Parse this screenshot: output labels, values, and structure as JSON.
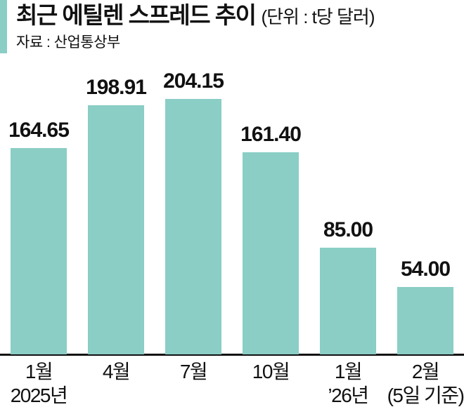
{
  "header": {
    "title": "최근 에틸렌 스프레드 추이",
    "unit_label": "(단위 : t당 달러)",
    "source": "자료 : 산업통상부"
  },
  "colors": {
    "bar": "#8ACEC6",
    "accent": "#8ACEC6",
    "axis": "#111111",
    "text": "#111111"
  },
  "chart_data": {
    "type": "bar",
    "title": "최근 에틸렌 스프레드 추이",
    "unit": "t당 달러",
    "source": "산업통상부",
    "categories": [
      "1월",
      "4월",
      "7월",
      "10월",
      "1월",
      "2월"
    ],
    "sub_labels": [
      "2025년",
      "",
      "",
      "",
      "’26년",
      "(5일 기준)"
    ],
    "values": [
      164.65,
      198.91,
      204.15,
      161.4,
      85.0,
      54.0
    ],
    "value_labels": [
      "164.65",
      "198.91",
      "204.15",
      "161.40",
      "85.00",
      "54.00"
    ],
    "ylim": [
      0,
      204.15
    ],
    "grid": false,
    "legend": null,
    "bar_color": "#8ACEC6"
  }
}
